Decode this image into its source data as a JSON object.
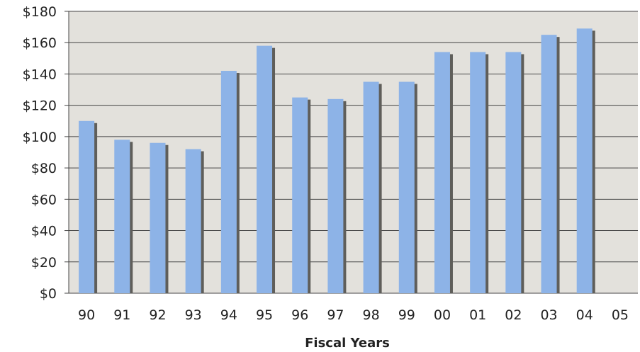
{
  "chart_data": {
    "type": "bar",
    "title": "",
    "xlabel": "Fiscal Years",
    "ylabel": "",
    "categories": [
      "90",
      "91",
      "92",
      "93",
      "94",
      "95",
      "96",
      "97",
      "98",
      "99",
      "00",
      "01",
      "02",
      "03",
      "04",
      "05"
    ],
    "values": [
      110,
      98,
      96,
      92,
      142,
      158,
      125,
      124,
      135,
      135,
      154,
      154,
      154,
      165,
      169,
      null
    ],
    "ylim": [
      0,
      180
    ],
    "yticks": [
      0,
      20,
      40,
      60,
      80,
      100,
      120,
      140,
      160,
      180
    ],
    "ytick_labels": [
      "$0",
      "$20",
      "$40",
      "$60",
      "$80",
      "$100",
      "$120",
      "$140",
      "$160",
      "$180"
    ],
    "grid": true,
    "legend": "none",
    "colors": {
      "bar": "#8DB3E7",
      "bar_shadow": "#5F5E5A",
      "plot_background": "#E3E1DC",
      "gridline": "#444444"
    }
  }
}
